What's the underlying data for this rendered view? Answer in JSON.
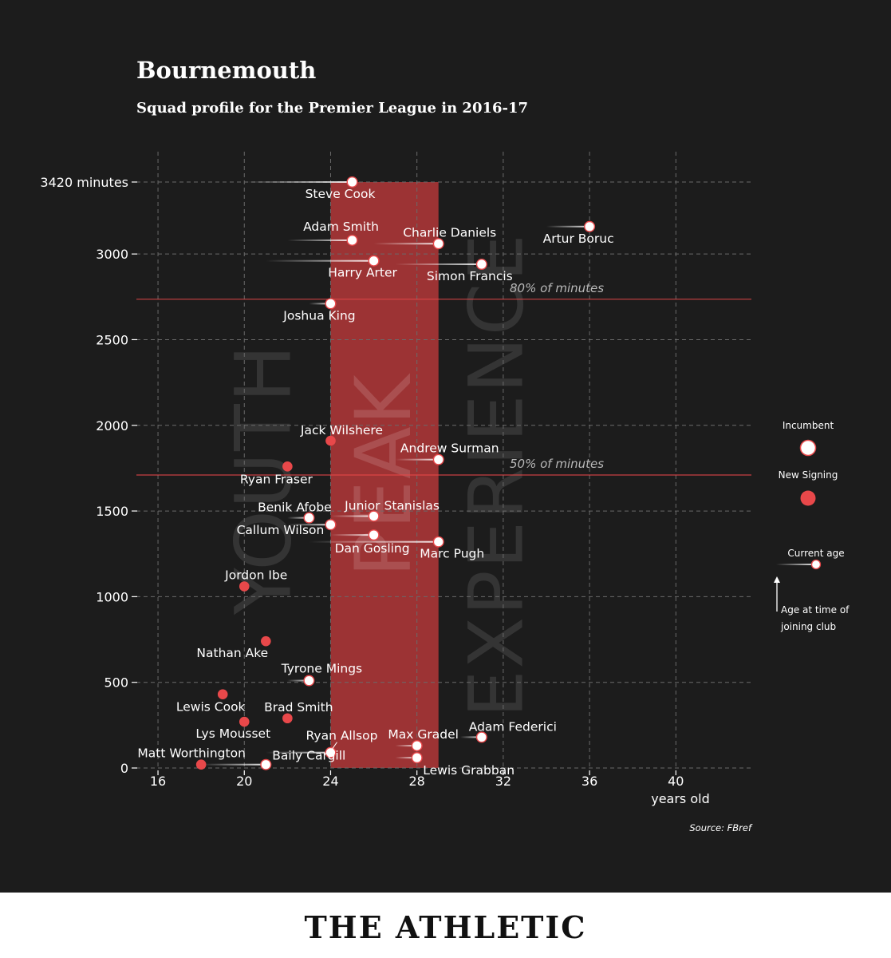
{
  "header": {
    "title": "Bournemouth",
    "subtitle": "Squad profile for the Premier League in 2016-17"
  },
  "footer": {
    "brand": "THE ATHLETIC"
  },
  "source": "Source: FBref",
  "colors": {
    "background": "#1c1c1c",
    "accent": "#e8484a",
    "peak_band": "#9c3334",
    "incumbent_fill": "#ffffff",
    "new_signing_fill": "#e8484a"
  },
  "chart_data": {
    "type": "scatter",
    "title": "Bournemouth",
    "subtitle": "Squad profile for the Premier League in 2016-17",
    "xlabel": "years old",
    "ylabel": "",
    "xlim": [
      15,
      43.5
    ],
    "ylim": [
      0,
      3420
    ],
    "xticks": [
      16,
      20,
      24,
      28,
      32,
      36,
      40
    ],
    "yticks": [
      {
        "value": 0,
        "label": "0"
      },
      {
        "value": 500,
        "label": "500"
      },
      {
        "value": 1000,
        "label": "1000"
      },
      {
        "value": 1500,
        "label": "1500"
      },
      {
        "value": 2000,
        "label": "2000"
      },
      {
        "value": 2500,
        "label": "2500"
      },
      {
        "value": 3000,
        "label": "3000"
      },
      {
        "value": 3420,
        "label": "3420 minutes"
      }
    ],
    "grid": true,
    "zones": [
      {
        "label": "YOUTH",
        "from": 15,
        "to": 24
      },
      {
        "label": "PEAK",
        "from": 24,
        "to": 29
      },
      {
        "label": "EXPERIENCE",
        "from": 29,
        "to": 43.5
      }
    ],
    "reference_lines": [
      {
        "label": "80% of minutes",
        "value": 2736
      },
      {
        "label": "50% of minutes",
        "value": 1710
      }
    ],
    "legend": {
      "incumbent": "Incumbent",
      "new_signing": "New Signing",
      "current_age": "Current age",
      "joining_age": "Age at time of joining club",
      "placement": "right"
    },
    "players": [
      {
        "name": "Steve Cook",
        "age": 25,
        "joined_age": 20,
        "minutes": 3420,
        "type": "incumbent"
      },
      {
        "name": "Adam Smith",
        "age": 25,
        "joined_age": 22,
        "minutes": 3080,
        "type": "incumbent"
      },
      {
        "name": "Charlie Daniels",
        "age": 29,
        "joined_age": 26,
        "minutes": 3060,
        "type": "incumbent"
      },
      {
        "name": "Artur Boruc",
        "age": 36,
        "joined_age": 34,
        "minutes": 3160,
        "type": "incumbent"
      },
      {
        "name": "Harry Arter",
        "age": 26,
        "joined_age": 21,
        "minutes": 2960,
        "type": "incumbent"
      },
      {
        "name": "Simon Francis",
        "age": 31,
        "joined_age": 27,
        "minutes": 2940,
        "type": "incumbent"
      },
      {
        "name": "Joshua King",
        "age": 24,
        "joined_age": 23,
        "minutes": 2710,
        "type": "incumbent"
      },
      {
        "name": "Jack Wilshere",
        "age": 24,
        "joined_age": 24,
        "minutes": 1910,
        "type": "new"
      },
      {
        "name": "Andrew Surman",
        "age": 29,
        "joined_age": 27,
        "minutes": 1800,
        "type": "incumbent"
      },
      {
        "name": "Ryan Fraser",
        "age": 22,
        "joined_age": 22,
        "minutes": 1760,
        "type": "new"
      },
      {
        "name": "Junior Stanislas",
        "age": 26,
        "joined_age": 24,
        "minutes": 1470,
        "type": "incumbent"
      },
      {
        "name": "Benik Afobe",
        "age": 23,
        "joined_age": 22,
        "minutes": 1460,
        "type": "incumbent"
      },
      {
        "name": "Callum Wilson",
        "age": 24,
        "joined_age": 22,
        "minutes": 1420,
        "type": "incumbent"
      },
      {
        "name": "Dan Gosling",
        "age": 26,
        "joined_age": 24,
        "minutes": 1360,
        "type": "incumbent"
      },
      {
        "name": "Marc Pugh",
        "age": 29,
        "joined_age": 23,
        "minutes": 1320,
        "type": "incumbent"
      },
      {
        "name": "Jordon Ibe",
        "age": 20,
        "joined_age": 20,
        "minutes": 1060,
        "type": "new"
      },
      {
        "name": "Nathan Ake",
        "age": 21,
        "joined_age": 21,
        "minutes": 740,
        "type": "new"
      },
      {
        "name": "Tyrone Mings",
        "age": 23,
        "joined_age": 22,
        "minutes": 510,
        "type": "incumbent"
      },
      {
        "name": "Lewis Cook",
        "age": 19,
        "joined_age": 19,
        "minutes": 430,
        "type": "new"
      },
      {
        "name": "Brad Smith",
        "age": 22,
        "joined_age": 22,
        "minutes": 290,
        "type": "new"
      },
      {
        "name": "Lys Mousset",
        "age": 20,
        "joined_age": 20,
        "minutes": 270,
        "type": "new"
      },
      {
        "name": "Adam Federici",
        "age": 31,
        "joined_age": 30,
        "minutes": 180,
        "type": "incumbent"
      },
      {
        "name": "Max Gradel",
        "age": 28,
        "joined_age": 27,
        "minutes": 130,
        "type": "incumbent"
      },
      {
        "name": "Ryan Allsop",
        "age": 24,
        "joined_age": 21,
        "minutes": 90,
        "type": "incumbent"
      },
      {
        "name": "Lewis Grabban",
        "age": 28,
        "joined_age": 27,
        "minutes": 60,
        "type": "incumbent"
      },
      {
        "name": "Baily Cargill",
        "age": 21,
        "joined_age": 18,
        "minutes": 20,
        "type": "incumbent"
      },
      {
        "name": "Matt Worthington",
        "age": 18,
        "joined_age": 18,
        "minutes": 20,
        "type": "new"
      }
    ]
  }
}
